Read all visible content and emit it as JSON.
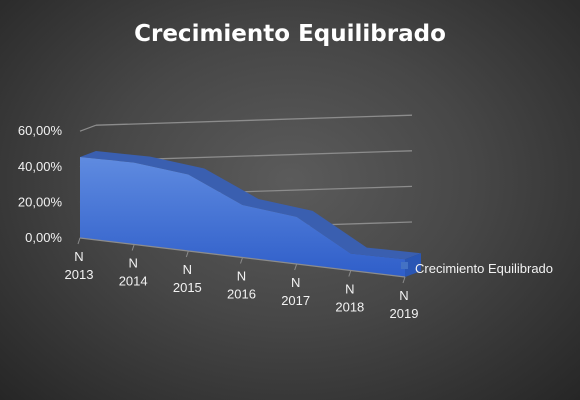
{
  "chart_data": {
    "type": "area",
    "title": "Crecimiento Equilibrado",
    "categories": [
      "N 2013",
      "N 2014",
      "N 2015",
      "N 2016",
      "N 2017",
      "N 2018",
      "N 2019"
    ],
    "category_lines": [
      [
        "N",
        "2013"
      ],
      [
        "N",
        "2014"
      ],
      [
        "N",
        "2015"
      ],
      [
        "N",
        "2016"
      ],
      [
        "N",
        "2017"
      ],
      [
        "N",
        "2018"
      ],
      [
        "N",
        "2019"
      ]
    ],
    "series": [
      {
        "name": "Crecimiento Equilibrado",
        "values": [
          0.455,
          0.46,
          0.43,
          0.295,
          0.265,
          0.095,
          0.1
        ]
      }
    ],
    "y_ticks": [
      "0,00%",
      "20,00%",
      "40,00%",
      "60,00%"
    ],
    "y_tick_values": [
      0,
      0.2,
      0.4,
      0.6
    ],
    "ylim": [
      0,
      0.6
    ],
    "y_format": "percent",
    "grid": true,
    "depth_3d": true,
    "legend_position": "right",
    "colors": {
      "series": "#4472C4",
      "series_top": "#3a5fb0",
      "grid": "#8c8c8c",
      "text": "#f2f2f2"
    }
  }
}
